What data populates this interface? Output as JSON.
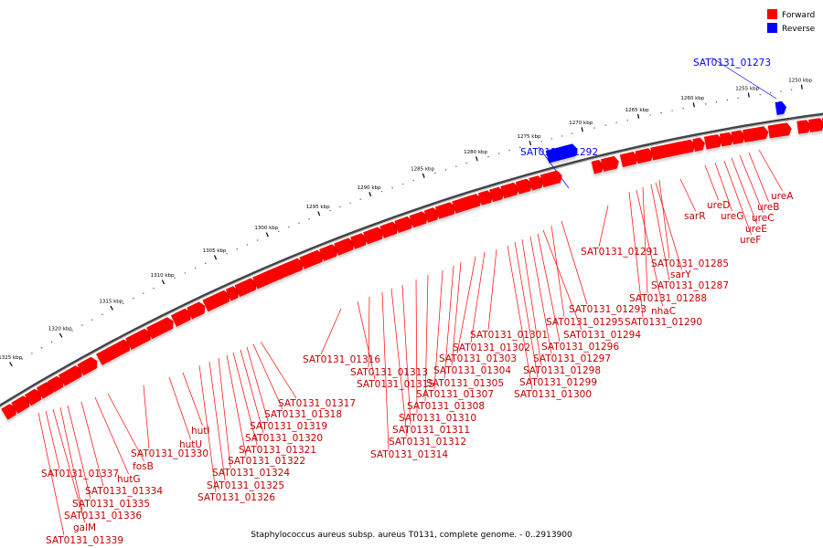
{
  "legend": {
    "forward": {
      "label": "Forward",
      "color": "#ff0000"
    },
    "reverse": {
      "label": "Reverse",
      "color": "#0000ff"
    }
  },
  "caption": "Staphylococcus aureus subsp. aureus T0131, complete genome. - 0..2913900",
  "scale_unit": "kbp",
  "scale_ticks": [
    1250,
    1255,
    1260,
    1265,
    1270,
    1275,
    1280,
    1285,
    1290,
    1295,
    1300,
    1305,
    1310,
    1315,
    1320,
    1325
  ],
  "genes": [
    {
      "name": "SAT0131_01273",
      "strand": "reverse"
    },
    {
      "name": "SAT0131_01292",
      "strand": "reverse"
    },
    {
      "name": "ureA",
      "strand": "forward"
    },
    {
      "name": "ureB",
      "strand": "forward"
    },
    {
      "name": "ureC",
      "strand": "forward"
    },
    {
      "name": "ureE",
      "strand": "forward"
    },
    {
      "name": "ureF",
      "strand": "forward"
    },
    {
      "name": "ureG",
      "strand": "forward"
    },
    {
      "name": "ureD",
      "strand": "forward"
    },
    {
      "name": "sarR",
      "strand": "forward"
    },
    {
      "name": "SAT0131_01285",
      "strand": "forward"
    },
    {
      "name": "sarY",
      "strand": "forward"
    },
    {
      "name": "SAT0131_01287",
      "strand": "forward"
    },
    {
      "name": "SAT0131_01288",
      "strand": "forward"
    },
    {
      "name": "nhaC",
      "strand": "forward"
    },
    {
      "name": "SAT0131_01290",
      "strand": "forward"
    },
    {
      "name": "SAT0131_01291",
      "strand": "forward"
    },
    {
      "name": "SAT0131_01293",
      "strand": "forward"
    },
    {
      "name": "SAT0131_01295",
      "strand": "forward"
    },
    {
      "name": "SAT0131_01294",
      "strand": "forward"
    },
    {
      "name": "SAT0131_01296",
      "strand": "forward"
    },
    {
      "name": "SAT0131_01297",
      "strand": "forward"
    },
    {
      "name": "SAT0131_01298",
      "strand": "forward"
    },
    {
      "name": "SAT0131_01299",
      "strand": "forward"
    },
    {
      "name": "SAT0131_01300",
      "strand": "forward"
    },
    {
      "name": "SAT0131_01301",
      "strand": "forward"
    },
    {
      "name": "SAT0131_01302",
      "strand": "forward"
    },
    {
      "name": "SAT0131_01303",
      "strand": "forward"
    },
    {
      "name": "SAT0131_01304",
      "strand": "forward"
    },
    {
      "name": "SAT0131_01305",
      "strand": "forward"
    },
    {
      "name": "SAT0131_01307",
      "strand": "forward"
    },
    {
      "name": "SAT0131_01308",
      "strand": "forward"
    },
    {
      "name": "SAT0131_01310",
      "strand": "forward"
    },
    {
      "name": "SAT0131_01311",
      "strand": "forward"
    },
    {
      "name": "SAT0131_01312",
      "strand": "forward"
    },
    {
      "name": "SAT0131_01314",
      "strand": "forward"
    },
    {
      "name": "SAT0131_01313",
      "strand": "forward"
    },
    {
      "name": "SAT0131_01315",
      "strand": "forward"
    },
    {
      "name": "SAT0131_01316",
      "strand": "forward"
    },
    {
      "name": "SAT0131_01317",
      "strand": "forward"
    },
    {
      "name": "SAT0131_01318",
      "strand": "forward"
    },
    {
      "name": "SAT0131_01319",
      "strand": "forward"
    },
    {
      "name": "SAT0131_01320",
      "strand": "forward"
    },
    {
      "name": "SAT0131_01321",
      "strand": "forward"
    },
    {
      "name": "SAT0131_01322",
      "strand": "forward"
    },
    {
      "name": "SAT0131_01324",
      "strand": "forward"
    },
    {
      "name": "SAT0131_01325",
      "strand": "forward"
    },
    {
      "name": "SAT0131_01326",
      "strand": "forward"
    },
    {
      "name": "hutI",
      "strand": "forward"
    },
    {
      "name": "hutU",
      "strand": "forward"
    },
    {
      "name": "SAT0131_01330",
      "strand": "forward"
    },
    {
      "name": "fosB",
      "strand": "forward"
    },
    {
      "name": "hutG",
      "strand": "forward"
    },
    {
      "name": "SAT0131_01334",
      "strand": "forward"
    },
    {
      "name": "SAT0131_01335",
      "strand": "forward"
    },
    {
      "name": "SAT0131_01336",
      "strand": "forward"
    },
    {
      "name": "SAT0131_01337",
      "strand": "forward"
    },
    {
      "name": "galM",
      "strand": "forward"
    },
    {
      "name": "SAT0131_01339",
      "strand": "forward"
    }
  ]
}
